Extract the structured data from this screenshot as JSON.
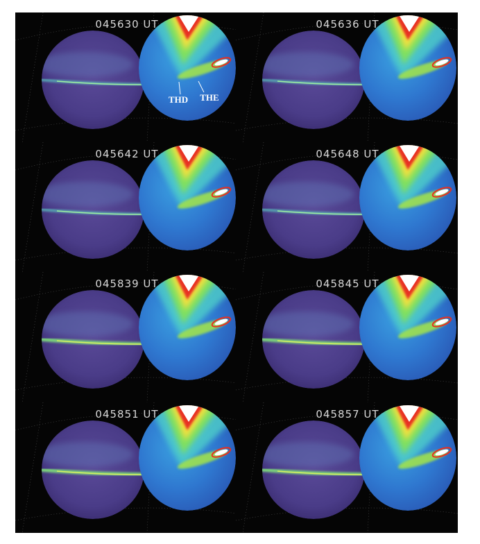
{
  "panels": [
    {
      "label": "045630 UT",
      "annotations": [
        {
          "label": "THD"
        },
        {
          "label": "THE"
        }
      ]
    },
    {
      "label": "045636 UT"
    },
    {
      "label": "045642 UT"
    },
    {
      "label": "045648 UT"
    },
    {
      "label": "045839 UT"
    },
    {
      "label": "045845 UT"
    },
    {
      "label": "045851 UT"
    },
    {
      "label": "045857 UT"
    }
  ]
}
